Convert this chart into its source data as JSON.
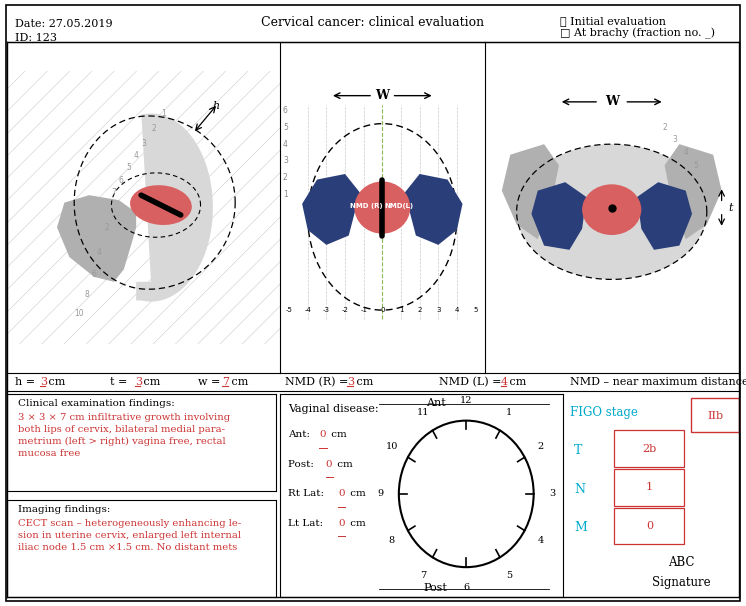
{
  "title_left": "Date: 27.05.2019\nID: 123",
  "title_center": "Cervical cancer: clinical evaluation",
  "title_right_line1": "☒ Initial evaluation",
  "title_right_line2": "□ At brachy (fraction no. _)",
  "h_val": "3",
  "t_val": "3",
  "w_val": "7",
  "nmd_r_val": "3",
  "nmd_l_val": "4",
  "clinical_title": "Clinical examination findings:",
  "clinical_red_text": "3 × 3 × 7 cm infiltrative growth involving\nboth lips of cervix, bilateral medial para-\nmetrium (left > right) vagina free, rectal\nmucosa free",
  "imaging_title": "Imaging findings:",
  "imaging_red_text": "CECT scan – heterogeneously enhancing le-\nsion in uterine cervix, enlarged left internal\niliac node 1.5 cm ×1.5 cm. No distant mets",
  "vaginal_title": "Vaginal disease:",
  "vaginal_ant": "Ant: 0 cm",
  "vaginal_post": "Post: 0 cm",
  "vaginal_rt": "Rt Lat: 0 cm",
  "vaginal_lt": "Lt Lat: 0 cm",
  "figo_label": "FIGO stage",
  "figo_val": "IIb",
  "t_val2": "2b",
  "n_val": "1",
  "m_val": "0",
  "signature_line1": "ABC",
  "signature_line2": "Signature",
  "red_color": "#cc3333",
  "cyan_color": "#00aacc",
  "light_gray": "#d8d8d8",
  "mid_gray": "#b0b0b0",
  "blue_dark": "#2a3f7a"
}
